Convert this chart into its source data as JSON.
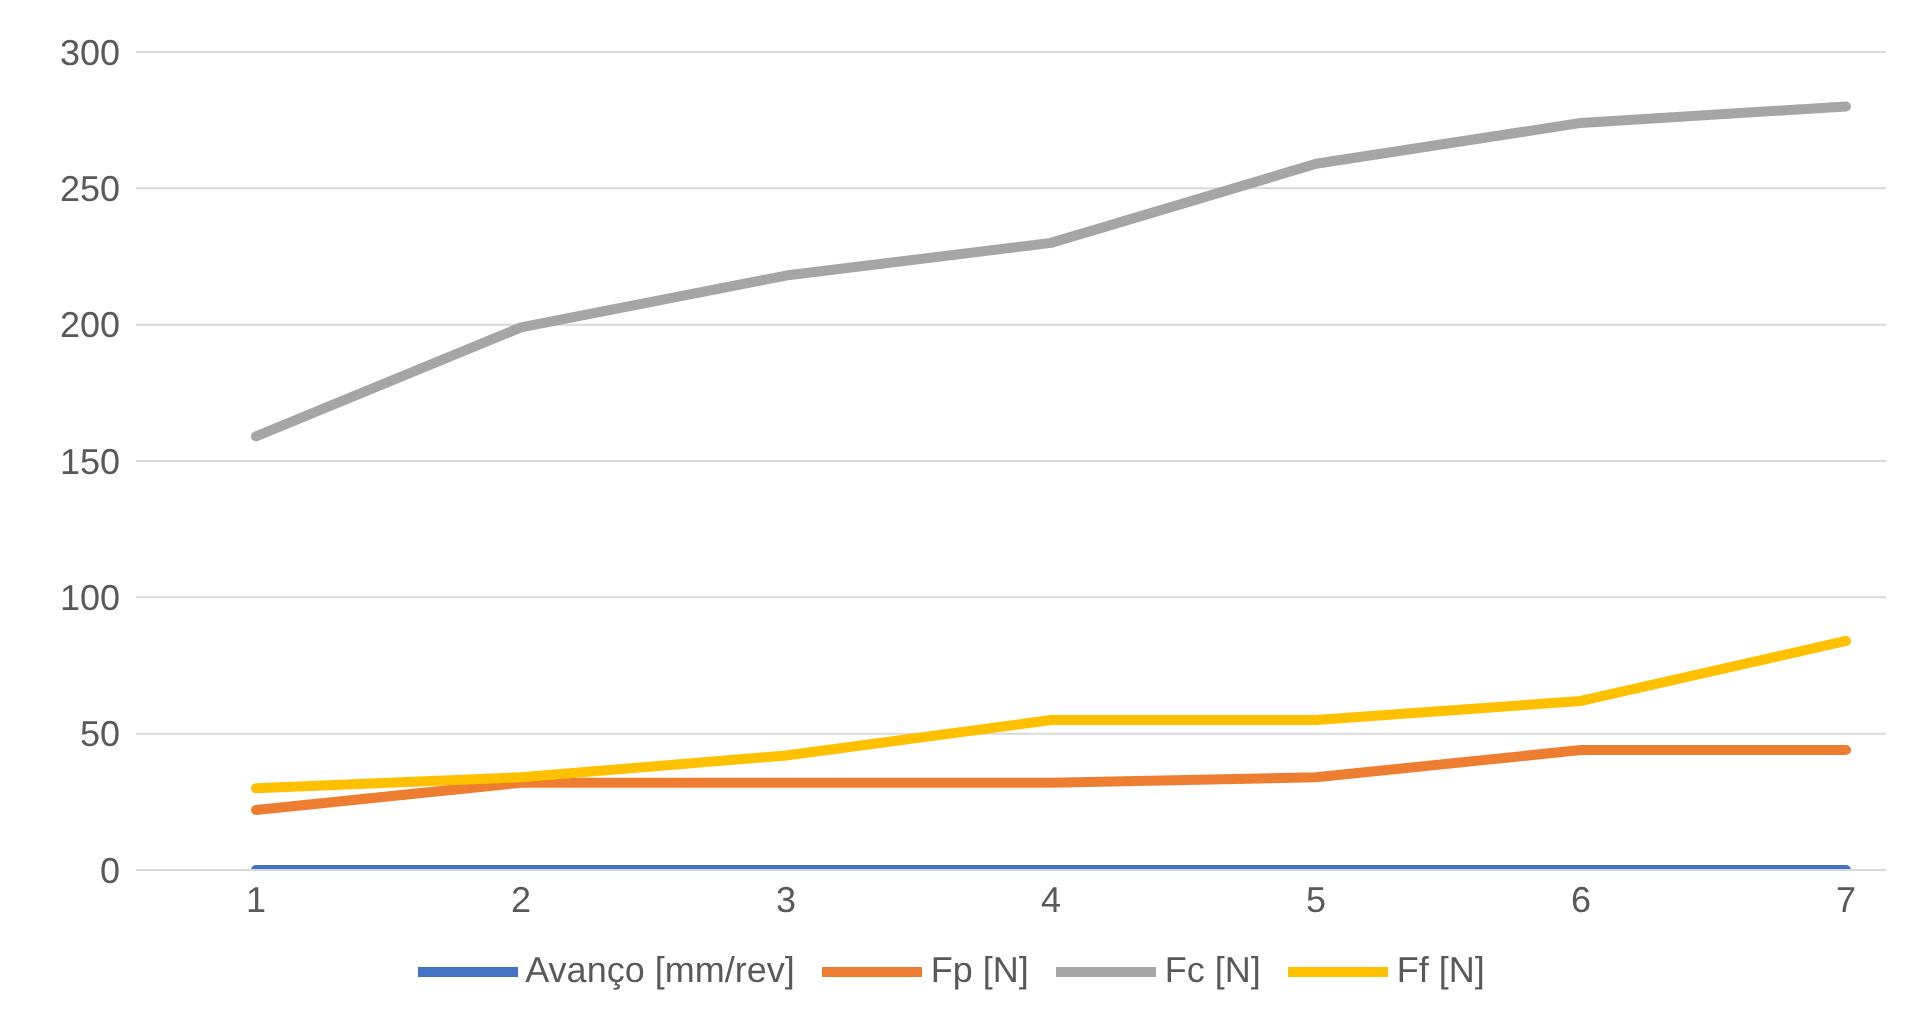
{
  "chart_data": {
    "type": "line",
    "categories": [
      "1",
      "2",
      "3",
      "4",
      "5",
      "6",
      "7"
    ],
    "series": [
      {
        "name": "Avanço [mm/rev]",
        "color": "#4472c4",
        "values": [
          0,
          0,
          0,
          0,
          0,
          0,
          0
        ]
      },
      {
        "name": "Fp [N]",
        "color": "#ed7d31",
        "values": [
          22,
          32,
          32,
          32,
          34,
          44,
          44
        ]
      },
      {
        "name": "Fc [N]",
        "color": "#a5a5a5",
        "values": [
          159,
          199,
          218,
          230,
          259,
          274,
          280
        ]
      },
      {
        "name": "Ff [N]",
        "color": "#ffc000",
        "values": [
          30,
          34,
          42,
          55,
          55,
          62,
          84
        ]
      }
    ],
    "ylim": [
      0,
      300
    ],
    "yticks": [
      0,
      50,
      100,
      150,
      200,
      250,
      300
    ],
    "grid": "y",
    "legend": "bottom",
    "marker": "none",
    "line_style": "solid"
  }
}
